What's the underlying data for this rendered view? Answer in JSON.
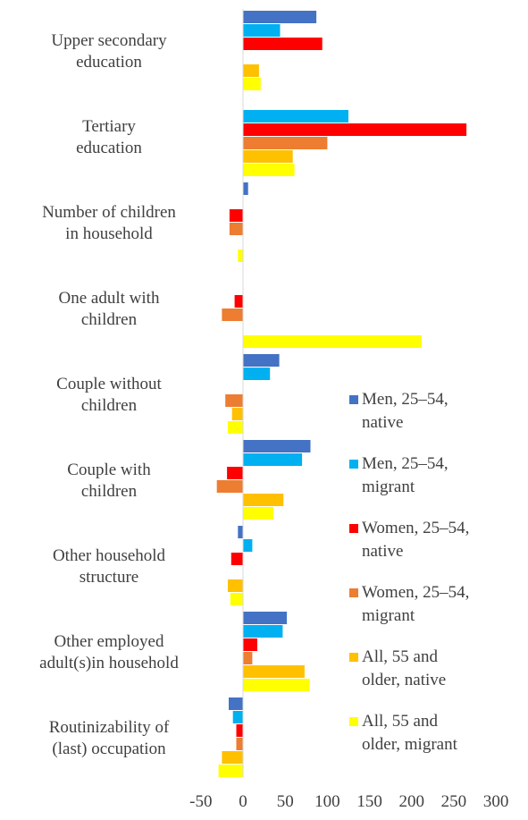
{
  "chart_data": {
    "type": "bar",
    "orientation": "horizontal",
    "categories": [
      [
        "Upper secondary",
        "education"
      ],
      [
        "Tertiary",
        "education"
      ],
      [
        "Number of children",
        "in household"
      ],
      [
        "One adult with",
        "children"
      ],
      [
        "Couple without",
        "children"
      ],
      [
        "Couple with",
        "children"
      ],
      [
        "Other household",
        "structure"
      ],
      [
        "Other employed",
        "adult(s)in household"
      ],
      [
        "Routinizability of",
        "(last) occupation"
      ]
    ],
    "series": [
      {
        "name": [
          "Men, 25–54,",
          "native"
        ],
        "color": "#4472C4",
        "values": [
          87,
          null,
          6,
          null,
          43,
          80,
          -6,
          52,
          -17
        ]
      },
      {
        "name": [
          "Men, 25–54,",
          "migrant"
        ],
        "color": "#00B0F0",
        "values": [
          44,
          125,
          null,
          null,
          32,
          70,
          11,
          47,
          -12
        ]
      },
      {
        "name": [
          "Women, 25–54,",
          "native"
        ],
        "color": "#FF0000",
        "values": [
          94,
          265,
          -16,
          -10,
          null,
          -19,
          -14,
          17,
          -8
        ]
      },
      {
        "name": [
          "Women, 25–54,",
          "migrant"
        ],
        "color": "#ED7D31",
        "values": [
          null,
          100,
          -16,
          -25,
          -21,
          -31,
          null,
          11,
          -8
        ]
      },
      {
        "name": [
          "All, 55 and",
          "older, native"
        ],
        "color": "#FFC000",
        "values": [
          19,
          59,
          null,
          null,
          -13,
          48,
          -18,
          73,
          -25
        ]
      },
      {
        "name": [
          "All, 55 and",
          "older, migrant"
        ],
        "color": "#FFFF00",
        "values": [
          21,
          61,
          -6,
          212,
          -18,
          36,
          -15,
          79,
          -29
        ]
      }
    ],
    "xticks": [
      "-50",
      "0",
      "50",
      "100",
      "150",
      "200",
      "250",
      "300"
    ],
    "xlim": [
      -50,
      300
    ],
    "legend_position": "right"
  }
}
